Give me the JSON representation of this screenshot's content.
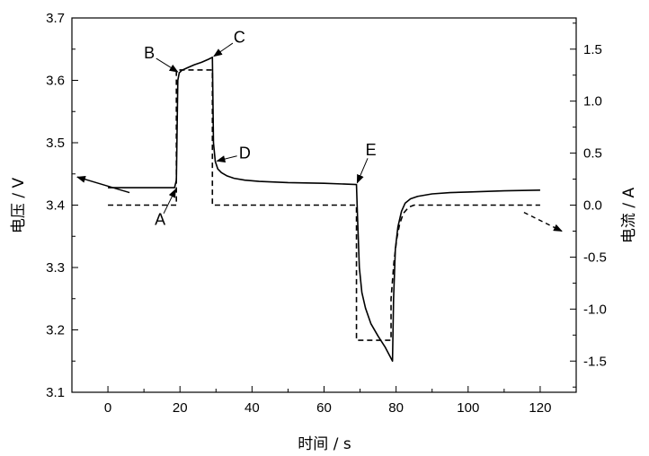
{
  "chart_data": {
    "type": "line",
    "xlabel": "时间 / s",
    "ylabel_left": "电压 / V",
    "ylabel_right": "电流 / A",
    "xlim": [
      -10,
      130
    ],
    "ylim_left": [
      3.1,
      3.7
    ],
    "ylim_right": [
      -1.8,
      1.8
    ],
    "x_ticks": [
      0,
      20,
      40,
      60,
      80,
      100,
      120
    ],
    "y_left_ticks": [
      3.1,
      3.2,
      3.3,
      3.4,
      3.5,
      3.6,
      3.7
    ],
    "y_right_ticks": [
      -1.5,
      -1.0,
      -0.5,
      0.0,
      0.5,
      1.0,
      1.5
    ],
    "x_tick_labels": [
      "0",
      "20",
      "40",
      "60",
      "80",
      "100",
      "120"
    ],
    "y_left_tick_labels": [
      "3.1",
      "3.2",
      "3.3",
      "3.4",
      "3.5",
      "3.6",
      "3.7"
    ],
    "y_right_tick_labels": [
      "-1.5",
      "-1.0",
      "-0.5",
      "0.0",
      "0.5",
      "1.0",
      "1.5"
    ],
    "grid": false,
    "series": [
      {
        "axis": "left",
        "style": "solid",
        "color": "#000000",
        "points": [
          [
            0,
            3.428
          ],
          [
            10,
            3.428
          ],
          [
            18.5,
            3.428
          ],
          [
            19.0,
            3.44
          ],
          [
            19.4,
            3.6
          ],
          [
            19.8,
            3.612
          ],
          [
            20.5,
            3.616
          ],
          [
            22,
            3.62
          ],
          [
            24,
            3.625
          ],
          [
            26,
            3.629
          ],
          [
            28,
            3.634
          ],
          [
            29.0,
            3.637
          ],
          [
            29.3,
            3.5
          ],
          [
            29.8,
            3.47
          ],
          [
            30.5,
            3.458
          ],
          [
            31.5,
            3.452
          ],
          [
            33,
            3.447
          ],
          [
            35,
            3.443
          ],
          [
            38,
            3.44
          ],
          [
            42,
            3.438
          ],
          [
            50,
            3.436
          ],
          [
            60,
            3.435
          ],
          [
            69,
            3.433
          ],
          [
            69.3,
            3.38
          ],
          [
            69.8,
            3.3
          ],
          [
            70.5,
            3.26
          ],
          [
            71.5,
            3.235
          ],
          [
            73,
            3.21
          ],
          [
            75,
            3.19
          ],
          [
            77,
            3.172
          ],
          [
            79,
            3.15
          ],
          [
            79.3,
            3.25
          ],
          [
            79.8,
            3.33
          ],
          [
            80.5,
            3.365
          ],
          [
            81.5,
            3.39
          ],
          [
            82.5,
            3.403
          ],
          [
            84,
            3.41
          ],
          [
            86,
            3.414
          ],
          [
            90,
            3.418
          ],
          [
            95,
            3.42
          ],
          [
            100,
            3.421
          ],
          [
            110,
            3.423
          ],
          [
            120,
            3.424
          ]
        ]
      },
      {
        "axis": "right",
        "style": "dashed",
        "color": "#000000",
        "points": [
          [
            0,
            0
          ],
          [
            19,
            0
          ],
          [
            19,
            1.3
          ],
          [
            29,
            1.3
          ],
          [
            29,
            0
          ],
          [
            69,
            0
          ],
          [
            69,
            -1.3
          ],
          [
            78.6,
            -1.3
          ],
          [
            78.6,
            -0.9
          ],
          [
            79.4,
            -0.55
          ],
          [
            80.2,
            -0.32
          ],
          [
            81,
            -0.18
          ],
          [
            82,
            -0.08
          ],
          [
            83.5,
            -0.02
          ],
          [
            85,
            0
          ],
          [
            120,
            0
          ]
        ]
      }
    ],
    "annotations": [
      {
        "text": "A",
        "x": 19,
        "y": 3.428,
        "label_x": 14.5,
        "label_y": 3.375
      },
      {
        "text": "B",
        "x": 19.8,
        "y": 3.612,
        "label_x": 11.5,
        "label_y": 3.642
      },
      {
        "text": "C",
        "x": 29,
        "y": 3.637,
        "label_x": 36.5,
        "label_y": 3.667
      },
      {
        "text": "D",
        "x": 29.8,
        "y": 3.47,
        "label_x": 38,
        "label_y": 3.482
      },
      {
        "text": "E",
        "x": 69,
        "y": 3.433,
        "label_x": 73,
        "label_y": 3.487
      }
    ],
    "axis_arrows": [
      {
        "axis": "left",
        "style": "solid",
        "from": [
          6,
          3.42
        ],
        "to": [
          -8.5,
          3.445
        ]
      },
      {
        "axis": "right",
        "style": "dashed",
        "from": [
          115.5,
          -0.07
        ],
        "to": [
          126,
          -0.25
        ]
      }
    ]
  }
}
